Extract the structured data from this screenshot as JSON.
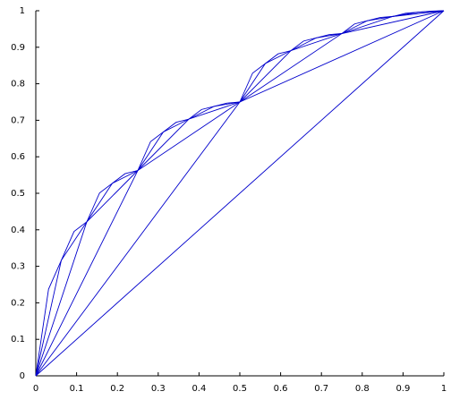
{
  "chart_data": {
    "type": "line",
    "color": "#0000cc",
    "xlim": [
      0,
      1
    ],
    "ylim": [
      0,
      1
    ],
    "xticks": [
      0,
      0.1,
      0.2,
      0.3,
      0.4,
      0.5,
      0.6,
      0.7,
      0.8,
      0.9,
      1
    ],
    "yticks": [
      0,
      0.1,
      0.2,
      0.3,
      0.4,
      0.5,
      0.6,
      0.7,
      0.8,
      0.9,
      1
    ],
    "series": [
      {
        "x": [
          0,
          1
        ],
        "values": [
          0,
          1
        ]
      },
      {
        "x": [
          0,
          0.5,
          1
        ],
        "values": [
          0,
          0.75,
          1
        ]
      },
      {
        "x": [
          0,
          0.25,
          0.5,
          0.75,
          1
        ],
        "values": [
          0,
          0.5625,
          0.75,
          0.9375,
          1
        ]
      },
      {
        "x": [
          0,
          0.125,
          0.25,
          0.375,
          0.5,
          0.625,
          0.75,
          0.875,
          1
        ],
        "values": [
          0,
          0.421875,
          0.5625,
          0.703125,
          0.75,
          0.890625,
          0.9375,
          0.984375,
          1
        ]
      },
      {
        "x": [
          0,
          0.0625,
          0.125,
          0.1875,
          0.25,
          0.3125,
          0.375,
          0.4375,
          0.5,
          0.5625,
          0.625,
          0.6875,
          0.75,
          0.8125,
          0.875,
          0.9375,
          1
        ],
        "values": [
          0,
          0.31640625,
          0.421875,
          0.52734375,
          0.5625,
          0.66796875,
          0.703125,
          0.73828125,
          0.75,
          0.85546875,
          0.890625,
          0.92578125,
          0.9375,
          0.97265625,
          0.984375,
          0.99609375,
          1
        ]
      },
      {
        "x": [
          0,
          0.03125,
          0.0625,
          0.09375,
          0.125,
          0.15625,
          0.1875,
          0.21875,
          0.25,
          0.28125,
          0.3125,
          0.34375,
          0.375,
          0.40625,
          0.4375,
          0.46875,
          0.5,
          0.53125,
          0.5625,
          0.59375,
          0.625,
          0.65625,
          0.6875,
          0.71875,
          0.75,
          0.78125,
          0.8125,
          0.84375,
          0.875,
          0.90625,
          0.9375,
          0.96875,
          1
        ],
        "values": [
          0,
          0.2373046875,
          0.31640625,
          0.3955078125,
          0.421875,
          0.5009765625,
          0.52734375,
          0.5537109375,
          0.5625,
          0.6416015625,
          0.66796875,
          0.6943359375,
          0.703125,
          0.7294921875,
          0.73828125,
          0.7470703125,
          0.75,
          0.8291015625,
          0.85546875,
          0.8818359375,
          0.890625,
          0.9169921875,
          0.92578125,
          0.9345703125,
          0.9375,
          0.9638671875,
          0.97265625,
          0.9814453125,
          0.984375,
          0.9931640625,
          0.99609375,
          0.9990234375,
          1
        ]
      }
    ]
  }
}
